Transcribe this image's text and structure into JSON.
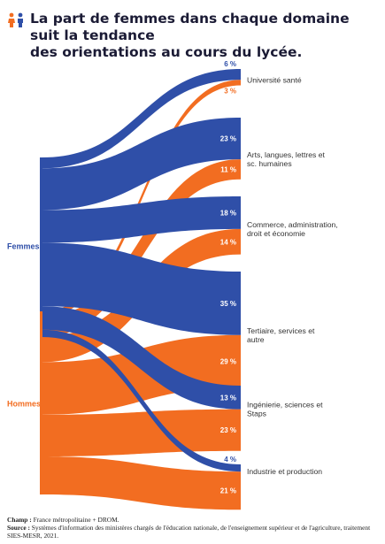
{
  "header": {
    "title_line1": "La part de femmes dans chaque domaine suit la tendance",
    "title_line2": "des orientations au cours du lycée."
  },
  "colors": {
    "femmes": "#2f4fa8",
    "hommes": "#f26d21",
    "title": "#1b1b35",
    "label": "#333333"
  },
  "icon": "women-men-icon",
  "groups": [
    {
      "id": "femmes",
      "label": "Femmes"
    },
    {
      "id": "hommes",
      "label": "Hommes"
    }
  ],
  "domains": [
    {
      "label": "Université santé",
      "femmes": 6,
      "hommes": 3,
      "femmes_label": "6 %",
      "hommes_label": "3 %"
    },
    {
      "label": "Arts, langues, lettres et sc. humaines",
      "femmes": 23,
      "hommes": 11,
      "femmes_label": "23 %",
      "hommes_label": "11 %"
    },
    {
      "label": "Commerce, administration, droit et économie",
      "femmes": 18,
      "hommes": 14,
      "femmes_label": "18 %",
      "hommes_label": "14 %"
    },
    {
      "label": "Tertiaire, services et autre",
      "femmes": 35,
      "hommes": 29,
      "femmes_label": "35 %",
      "hommes_label": "29 %"
    },
    {
      "label": "Ingénierie, sciences et Staps",
      "femmes": 13,
      "hommes": 23,
      "femmes_label": "13 %",
      "hommes_label": "23 %"
    },
    {
      "label": "Industrie et production",
      "femmes": 4,
      "hommes": 21,
      "femmes_label": "4 %",
      "hommes_label": "21 %"
    }
  ],
  "footer": {
    "champ_label": "Champ :",
    "champ_text": " France métropolitaine + DROM.",
    "source_label": "Source :",
    "source_text": " Systèmes d'information des ministères chargés de l'éducation nationale, de l'enseignement supérieur et de l'agriculture, traitement SIES-MESR, 2021."
  }
}
